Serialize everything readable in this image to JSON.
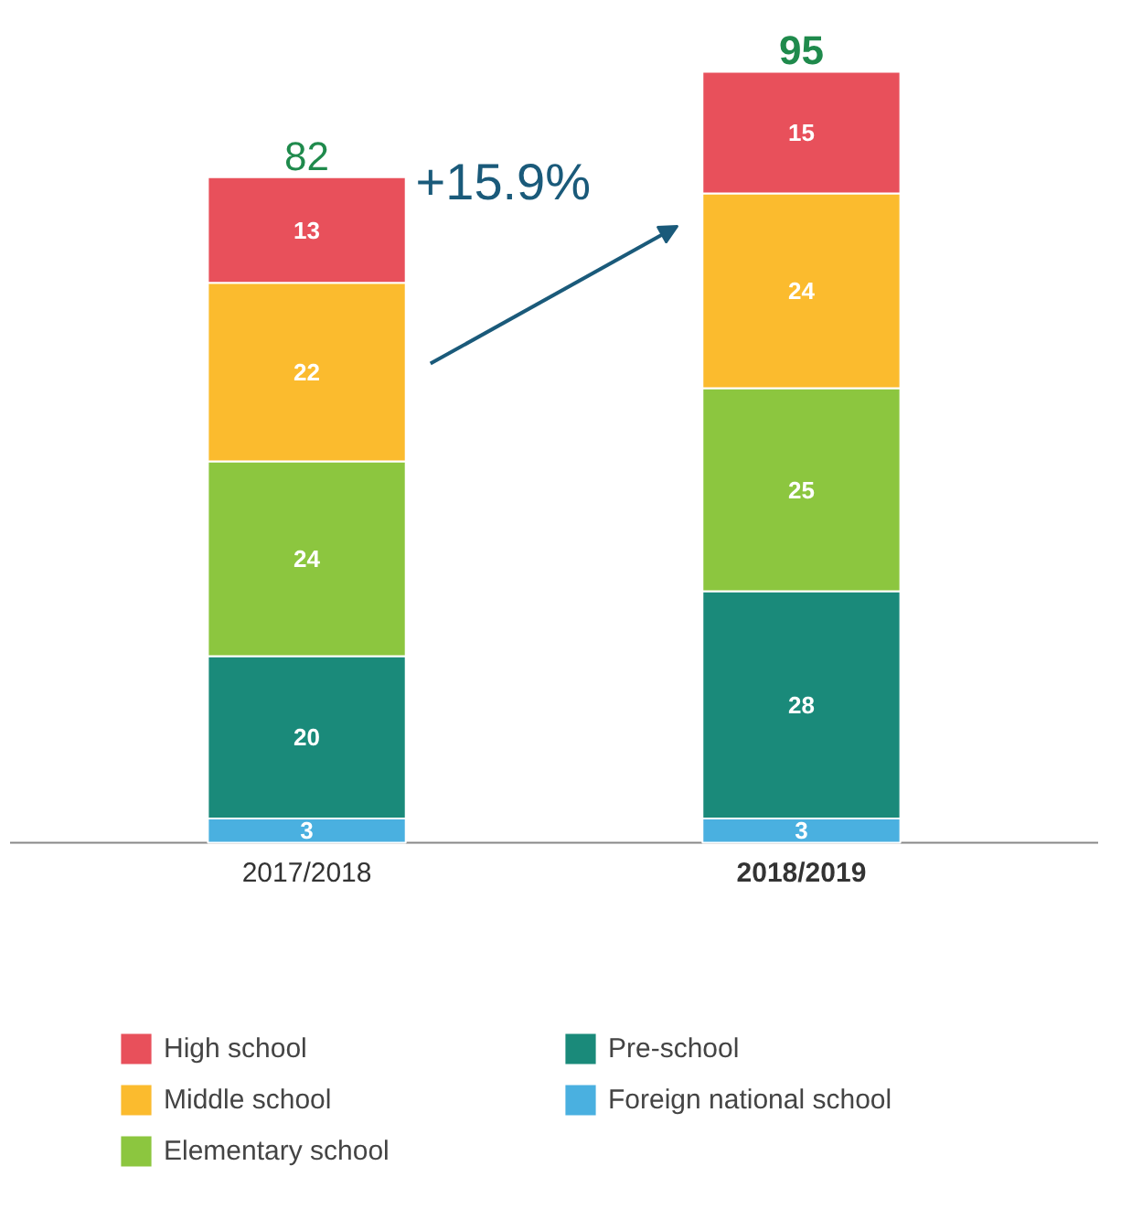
{
  "chart_data": {
    "type": "bar",
    "stacked": true,
    "data_labels": true,
    "legend": "bottom",
    "grid": false,
    "categories": [
      "2017/2018",
      "2018/2019"
    ],
    "series": [
      {
        "name": "Foreign national school",
        "color": "#4ab0e0",
        "values": [
          3,
          3
        ]
      },
      {
        "name": "Pre-school",
        "color": "#1a8a7a",
        "values": [
          20,
          28
        ]
      },
      {
        "name": "Elementary school",
        "color": "#8cc63f",
        "values": [
          24,
          25
        ]
      },
      {
        "name": "Middle school",
        "color": "#fbbb2e",
        "values": [
          22,
          24
        ]
      },
      {
        "name": "High school",
        "color": "#e8505b",
        "values": [
          13,
          15
        ]
      }
    ],
    "totals": [
      "82",
      "95"
    ],
    "annotations": [
      "+15.9%"
    ]
  }
}
